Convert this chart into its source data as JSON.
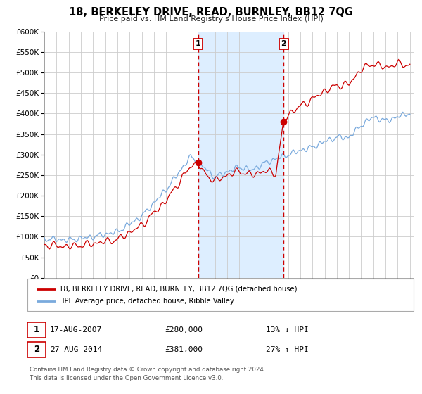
{
  "title": "18, BERKELEY DRIVE, READ, BURNLEY, BB12 7QG",
  "subtitle": "Price paid vs. HM Land Registry's House Price Index (HPI)",
  "legend_property": "18, BERKELEY DRIVE, READ, BURNLEY, BB12 7QG (detached house)",
  "legend_hpi": "HPI: Average price, detached house, Ribble Valley",
  "annotation1": {
    "num": "1",
    "date": "17-AUG-2007",
    "price": "£280,000",
    "pct": "13% ↓ HPI",
    "x_year": 2007.63,
    "y_val": 280000
  },
  "annotation2": {
    "num": "2",
    "date": "27-AUG-2014",
    "price": "£381,000",
    "pct": "27% ↑ HPI",
    "x_year": 2014.65,
    "y_val": 381000
  },
  "footer1": "Contains HM Land Registry data © Crown copyright and database right 2024.",
  "footer2": "This data is licensed under the Open Government Licence v3.0.",
  "property_color": "#cc0000",
  "hpi_color": "#7aaadd",
  "shaded_color": "#ddeeff",
  "ylim": [
    0,
    600000
  ],
  "yticks": [
    0,
    50000,
    100000,
    150000,
    200000,
    250000,
    300000,
    350000,
    400000,
    450000,
    500000,
    550000,
    600000
  ],
  "xlim_start": 1995.0,
  "xlim_end": 2025.3,
  "hpi_base_points_x": [
    1995,
    1997,
    1999,
    2001,
    2003,
    2005,
    2007,
    2008,
    2009,
    2010,
    2011,
    2012,
    2013,
    2014,
    2015,
    2016,
    2017,
    2018,
    2019,
    2020,
    2021,
    2022,
    2023,
    2024,
    2025
  ],
  "hpi_base_points_y": [
    95000,
    92000,
    100000,
    112000,
    150000,
    215000,
    295000,
    272000,
    245000,
    258000,
    270000,
    262000,
    278000,
    290000,
    300000,
    310000,
    318000,
    332000,
    342000,
    342000,
    372000,
    392000,
    382000,
    392000,
    402000
  ],
  "prop_base_points_x": [
    1995,
    1997,
    1999,
    2001,
    2003,
    2005,
    2007,
    2007.63,
    2008,
    2009,
    2010,
    2011,
    2012,
    2013,
    2014,
    2014.65,
    2015,
    2016,
    2017,
    2018,
    2019,
    2020,
    2021,
    2022,
    2023,
    2024,
    2025
  ],
  "prop_base_points_y": [
    80000,
    76000,
    83000,
    93000,
    128000,
    188000,
    272000,
    280000,
    258000,
    235000,
    250000,
    260000,
    250000,
    260000,
    255000,
    381000,
    398000,
    418000,
    435000,
    455000,
    468000,
    472000,
    508000,
    522000,
    512000,
    522000,
    518000
  ]
}
